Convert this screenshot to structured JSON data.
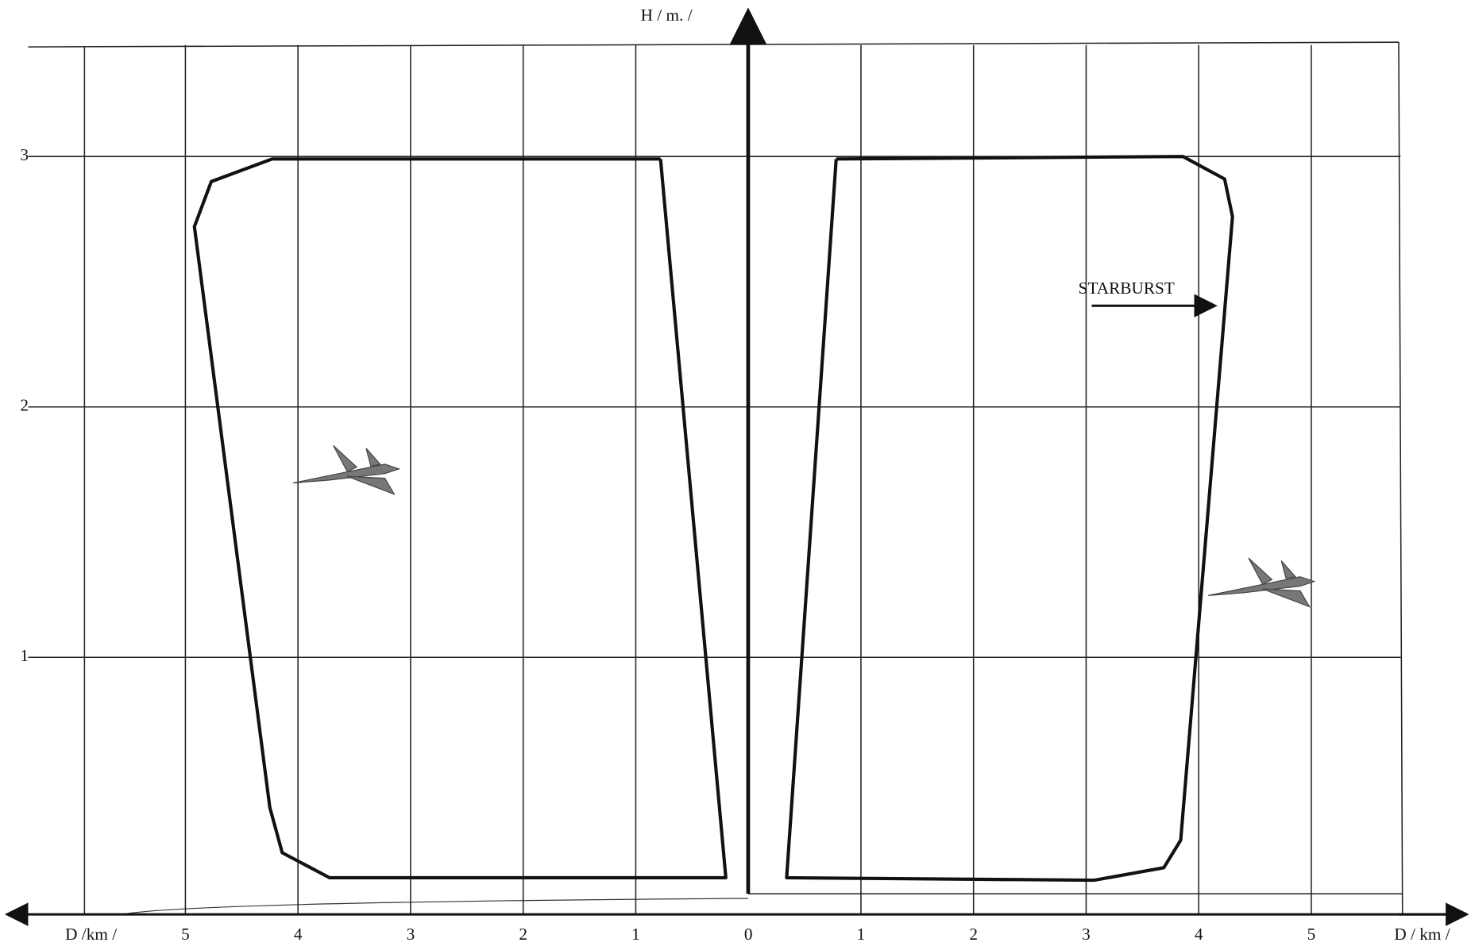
{
  "chart_data": {
    "type": "envelope",
    "x_label_left": "D /km /",
    "x_label_right": "D / km /",
    "y_label": "H / m. /",
    "annotation": "STARBURST",
    "xlim": [
      -6.58,
      6.36
    ],
    "ylim": [
      0,
      3.58
    ],
    "xticks": [
      {
        "value": -5,
        "label": "5"
      },
      {
        "value": -4,
        "label": "4"
      },
      {
        "value": -3,
        "label": "3"
      },
      {
        "value": -2,
        "label": "2"
      },
      {
        "value": -1,
        "label": "1"
      },
      0,
      1,
      2,
      3,
      4,
      5
    ],
    "yticks": [
      1,
      2,
      3
    ],
    "grid": true,
    "series": [
      {
        "color": "#111",
        "x": [
          -0.78,
          -0.2,
          -3.72,
          -4.14,
          -4.25,
          -4.92,
          -4.77,
          -4.23,
          -0.78
        ],
        "values": [
          2.99,
          0.12,
          0.12,
          0.22,
          0.4,
          2.72,
          2.9,
          2.99,
          2.99
        ]
      },
      {
        "color": "#111",
        "x": [
          0.78,
          0.34,
          3.07,
          3.69,
          3.84,
          4.3,
          4.23,
          3.86,
          0.78
        ],
        "values": [
          2.99,
          0.12,
          0.11,
          0.16,
          0.27,
          2.76,
          2.91,
          3.0,
          2.99
        ]
      }
    ]
  }
}
